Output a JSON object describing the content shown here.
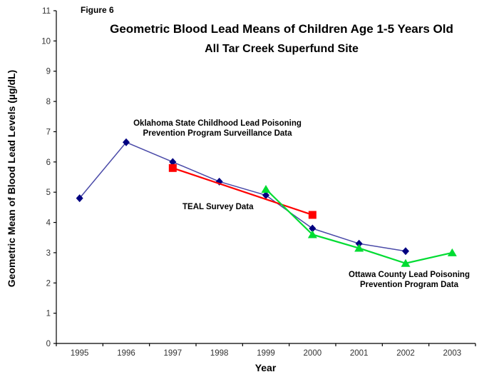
{
  "figure_label": "Figure 6",
  "chart_data": {
    "type": "line",
    "title": "Geometric Blood Lead Means of Children Age 1-5 Years Old",
    "subtitle": "All Tar Creek Superfund Site",
    "xlabel": "Year",
    "ylabel": "Geometric Mean of Blood Lead Levels (µg/dL)",
    "ylim": [
      0,
      11
    ],
    "ytick_step": 1,
    "grid": false,
    "legend_position": "none (series labeled by inline annotations)",
    "x_categories": [
      "1995",
      "1996",
      "1997",
      "1998",
      "1999",
      "2000",
      "2001",
      "2002",
      "2003"
    ],
    "series": [
      {
        "name": "Oklahoma State Childhood Lead Poisoning Prevention Program Surveillance Data",
        "marker": "diamond",
        "marker_color": "#000080",
        "line_color": "#4A4AA8",
        "line_width": 1.5,
        "x": [
          "1995",
          "1996",
          "1997",
          "1998",
          "1999",
          "2000",
          "2001",
          "2002"
        ],
        "y": [
          4.8,
          6.65,
          6.0,
          5.35,
          4.9,
          3.8,
          3.3,
          3.05
        ]
      },
      {
        "name": "TEAL Survey Data",
        "marker": "square",
        "marker_color": "#FF0000",
        "line_color": "#FF0000",
        "line_width": 2.2,
        "x": [
          "1997",
          "2000"
        ],
        "y": [
          5.8,
          4.25
        ]
      },
      {
        "name": "Ottawa County Lead Poisoning Prevention Program Data",
        "marker": "triangle",
        "marker_color": "#00DC32",
        "line_color": "#00DC32",
        "line_width": 2.2,
        "x": [
          "1999",
          "2000",
          "2001",
          "2002",
          "2003"
        ],
        "y": [
          5.1,
          3.6,
          3.15,
          2.65,
          3.0
        ]
      }
    ],
    "annotations": {
      "oklahoma": {
        "line1": "Oklahoma State Childhood Lead Poisoning",
        "line2": "Prevention Program Surveillance Data"
      },
      "teal": {
        "line1": "TEAL Survey Data"
      },
      "ottawa": {
        "line1": "Ottawa County Lead Poisoning",
        "line2": "Prevention Program Data"
      }
    },
    "axis_color": "#000000",
    "tick_label_color": "#333333"
  }
}
